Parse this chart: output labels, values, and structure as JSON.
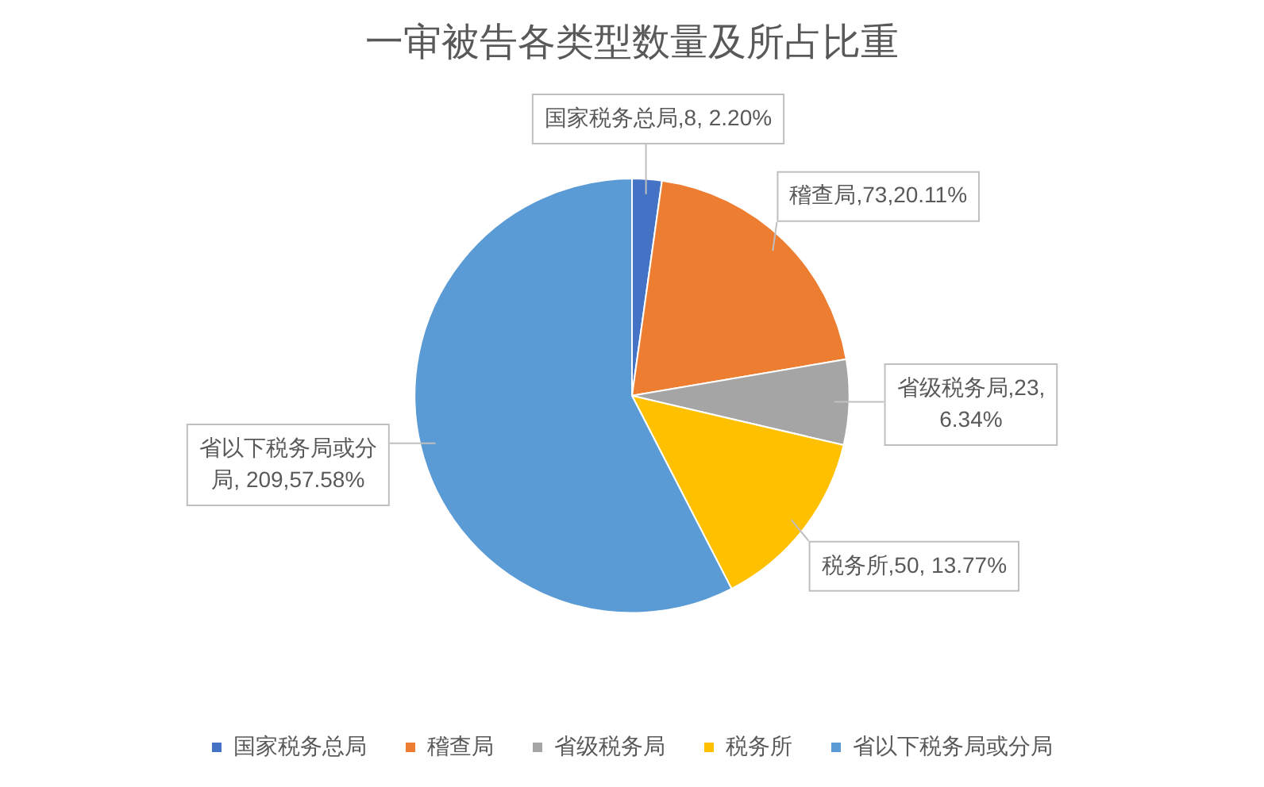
{
  "chart_data": {
    "type": "pie",
    "title": "一审被告各类型数量及所占比重",
    "categories": [
      "国家税务总局",
      "稽查局",
      "省级税务局",
      "税务所",
      "省以下税务局或分局"
    ],
    "values": [
      8,
      73,
      23,
      50,
      209
    ],
    "colors": [
      "#4472c4",
      "#ed7d31",
      "#a5a5a5",
      "#ffc000",
      "#5b9bd5"
    ],
    "value_labels": [
      "国家税务总局,8, 2.20%",
      "稽查局,73,20.11%",
      "省级税务局,23, 6.34%",
      "税务所,50, 13.77%",
      "省以下税务局或分局, 209,57.58%"
    ],
    "legend": "bottom"
  }
}
